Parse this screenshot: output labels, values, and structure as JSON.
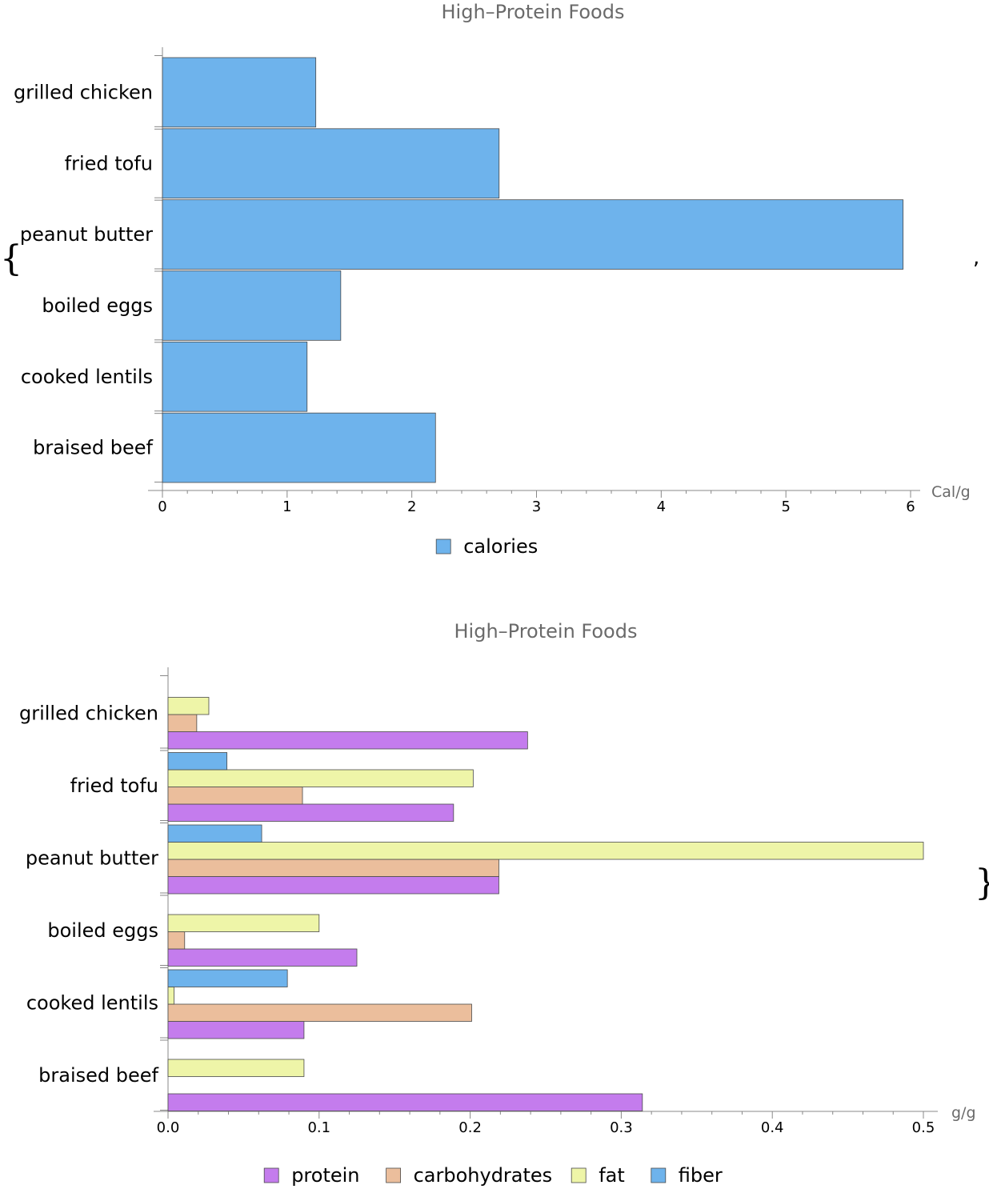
{
  "decor": {
    "open_brace": "{",
    "separator": ",",
    "close_brace": "}"
  },
  "chart_data": [
    {
      "type": "bar",
      "orientation": "horizontal",
      "title": "High–Protein Foods",
      "categories": [
        "grilled chicken",
        "fried tofu",
        "peanut butter",
        "boiled eggs",
        "cooked lentils",
        "braised beef"
      ],
      "xlabel": "Cal/g",
      "xlim": [
        0,
        6
      ],
      "ticks": [
        "0",
        "1",
        "2",
        "3",
        "4",
        "5",
        "6"
      ],
      "series": [
        {
          "name": "calories",
          "color": "#6eb3ec",
          "values": [
            1.23,
            2.7,
            5.94,
            1.43,
            1.16,
            2.19
          ]
        }
      ],
      "legend": "bottom"
    },
    {
      "type": "bar",
      "orientation": "horizontal",
      "title": "High–Protein Foods",
      "categories": [
        "grilled chicken",
        "fried tofu",
        "peanut butter",
        "boiled eggs",
        "cooked lentils",
        "braised beef"
      ],
      "xlabel": "g/g",
      "xlim": [
        0,
        0.5
      ],
      "ticks": [
        "0.0",
        "0.1",
        "0.2",
        "0.3",
        "0.4",
        "0.5"
      ],
      "series": [
        {
          "name": "protein",
          "color": "#c47ced",
          "values": [
            0.238,
            0.189,
            0.219,
            0.125,
            0.09,
            0.314
          ]
        },
        {
          "name": "carbohydrates",
          "color": "#ebbe9c",
          "values": [
            0.019,
            0.089,
            0.219,
            0.011,
            0.201,
            0
          ]
        },
        {
          "name": "fat",
          "color": "#eef5a8",
          "values": [
            0.027,
            0.202,
            0.5,
            0.1,
            0.004,
            0.09
          ]
        },
        {
          "name": "fiber",
          "color": "#6eb3ec",
          "values": [
            0,
            0.039,
            0.062,
            0,
            0.079,
            0
          ]
        }
      ],
      "legend": "bottom"
    }
  ]
}
